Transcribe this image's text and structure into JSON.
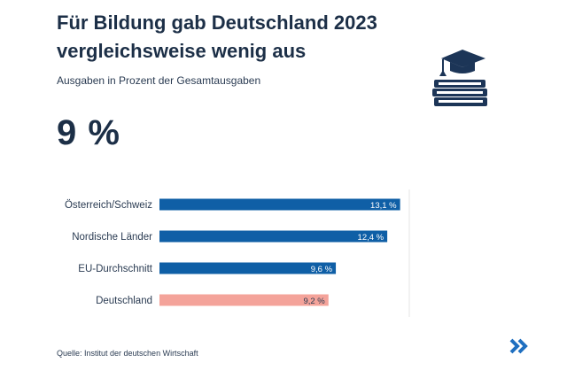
{
  "header": {
    "title": "Für Bildung gab Deutschland 2023 vergleichsweise wenig aus",
    "subtitle": "Ausgaben in Prozent der Gesamtausgaben",
    "highlight_value": "9 %"
  },
  "footer": {
    "source": "Quelle: Institut der deutschen Wirtschaft",
    "next_icon": "double-chevron-right-icon"
  },
  "logo_icon": "graduation-cap-books-icon",
  "colors": {
    "bar": "#0f5fa6",
    "highlight": "#f4a39a",
    "text_dark": "#1c2f47",
    "accent": "#1f6fc0"
  },
  "chart_data": {
    "type": "bar",
    "orientation": "horizontal",
    "categories": [
      "Österreich/Schweiz",
      "Nordische Länder",
      "EU-Durchschnitt",
      "Deutschland"
    ],
    "values": [
      13.1,
      12.4,
      9.6,
      9.2
    ],
    "value_labels": [
      "13,1 %",
      "12,4 %",
      "9,6 %",
      "9,2 %"
    ],
    "highlight_index": 3,
    "xlim": [
      0,
      13.6
    ]
  }
}
